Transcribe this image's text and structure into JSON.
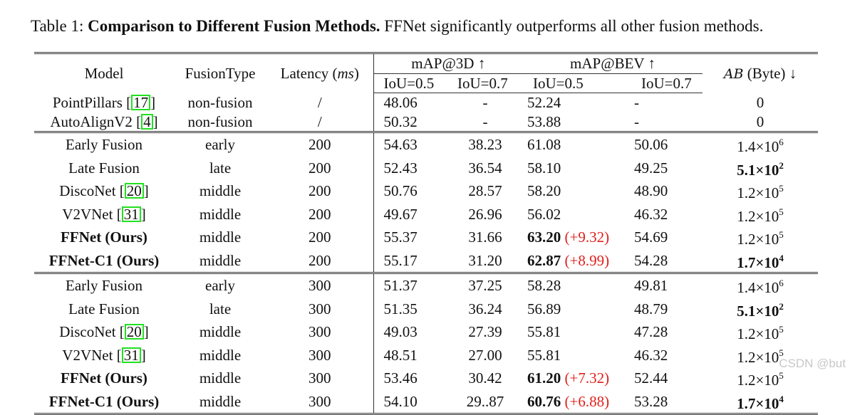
{
  "caption": {
    "label": "Table 1:",
    "title": "Comparison to Different Fusion Methods.",
    "text": "FFNet significantly outperforms all other fusion methods."
  },
  "header": {
    "model": "Model",
    "fusion_type": "FusionType",
    "latency": "Latency (",
    "latency_unit": "ms",
    "latency_close": ")",
    "map3d": "mAP@3D ↑",
    "mapbev": "mAP@BEV ↑",
    "ab": "AB",
    "ab_unit": " (Byte) ↓",
    "iou05": "IoU=0.5",
    "iou07": "IoU=0.7"
  },
  "rows": [
    {
      "model": "PointPillars [",
      "cite": "17",
      "close": "]",
      "bold": false,
      "type": "non-fusion",
      "latency": "/",
      "m3d05": "48.06",
      "m3d07": "-",
      "bev05": "52.24",
      "bev05_delta": "",
      "bev05_bold": false,
      "bev07": "-",
      "ab_base": "0",
      "ab_exp": "",
      "ab_bold": false
    },
    {
      "model": "AutoAlignV2 [",
      "cite": "4",
      "close": "]",
      "bold": false,
      "type": "non-fusion",
      "latency": "/",
      "m3d05": "50.32",
      "m3d07": "-",
      "bev05": "53.88",
      "bev05_delta": "",
      "bev05_bold": false,
      "bev07": "-",
      "ab_base": "0",
      "ab_exp": "",
      "ab_bold": false
    },
    {
      "model": "Early Fusion",
      "cite": "",
      "close": "",
      "bold": false,
      "type": "early",
      "latency": "200",
      "m3d05": "54.63",
      "m3d07": "38.23",
      "bev05": "61.08",
      "bev05_delta": "",
      "bev05_bold": false,
      "bev07": "50.06",
      "ab_base": "1.4×10",
      "ab_exp": "6",
      "ab_bold": false
    },
    {
      "model": "Late Fusion",
      "cite": "",
      "close": "",
      "bold": false,
      "type": "late",
      "latency": "200",
      "m3d05": "52.43",
      "m3d07": "36.54",
      "bev05": "58.10",
      "bev05_delta": "",
      "bev05_bold": false,
      "bev07": "49.25",
      "ab_base": "5.1×10",
      "ab_exp": "2",
      "ab_bold": true
    },
    {
      "model": "DiscoNet [",
      "cite": "20",
      "close": "]",
      "bold": false,
      "type": "middle",
      "latency": "200",
      "m3d05": "50.76",
      "m3d07": "28.57",
      "bev05": "58.20",
      "bev05_delta": "",
      "bev05_bold": false,
      "bev07": "48.90",
      "ab_base": "1.2×10",
      "ab_exp": "5",
      "ab_bold": false
    },
    {
      "model": "V2VNet [",
      "cite": "31",
      "close": "]",
      "bold": false,
      "type": "middle",
      "latency": "200",
      "m3d05": "49.67",
      "m3d07": "26.96",
      "bev05": "56.02",
      "bev05_delta": "",
      "bev05_bold": false,
      "bev07": "46.32",
      "ab_base": "1.2×10",
      "ab_exp": "5",
      "ab_bold": false
    },
    {
      "model": "FFNet (Ours)",
      "cite": "",
      "close": "",
      "bold": true,
      "type": "middle",
      "latency": "200",
      "m3d05": "55.37",
      "m3d07": "31.66",
      "bev05": "63.20",
      "bev05_delta": "(+9.32)",
      "bev05_bold": true,
      "bev07": "54.69",
      "ab_base": "1.2×10",
      "ab_exp": "5",
      "ab_bold": false
    },
    {
      "model": "FFNet-C1 (Ours)",
      "cite": "",
      "close": "",
      "bold": true,
      "type": "middle",
      "latency": "200",
      "m3d05": "55.17",
      "m3d07": "31.20",
      "bev05": "62.87",
      "bev05_delta": "(+8.99)",
      "bev05_bold": true,
      "bev07": "54.28",
      "ab_base": "1.7×10",
      "ab_exp": "4",
      "ab_bold": true
    },
    {
      "model": "Early Fusion",
      "cite": "",
      "close": "",
      "bold": false,
      "type": "early",
      "latency": "300",
      "m3d05": "51.37",
      "m3d07": "37.25",
      "bev05": "58.28",
      "bev05_delta": "",
      "bev05_bold": false,
      "bev07": "49.81",
      "ab_base": "1.4×10",
      "ab_exp": "6",
      "ab_bold": false
    },
    {
      "model": "Late Fusion",
      "cite": "",
      "close": "",
      "bold": false,
      "type": "late",
      "latency": "300",
      "m3d05": "51.35",
      "m3d07": "36.24",
      "bev05": "56.89",
      "bev05_delta": "",
      "bev05_bold": false,
      "bev07": "48.79",
      "ab_base": "5.1×10",
      "ab_exp": "2",
      "ab_bold": true
    },
    {
      "model": "DiscoNet [",
      "cite": "20",
      "close": "]",
      "bold": false,
      "type": "middle",
      "latency": "300",
      "m3d05": "49.03",
      "m3d07": "27.39",
      "bev05": "55.81",
      "bev05_delta": "",
      "bev05_bold": false,
      "bev07": "47.28",
      "ab_base": "1.2×10",
      "ab_exp": "5",
      "ab_bold": false
    },
    {
      "model": "V2VNet [",
      "cite": "31",
      "close": "]",
      "bold": false,
      "type": "middle",
      "latency": "300",
      "m3d05": "48.51",
      "m3d07": "27.00",
      "bev05": "55.81",
      "bev05_delta": "",
      "bev05_bold": false,
      "bev07": "46.32",
      "ab_base": "1.2×10",
      "ab_exp": "5",
      "ab_bold": false
    },
    {
      "model": "FFNet (Ours)",
      "cite": "",
      "close": "",
      "bold": true,
      "type": "middle",
      "latency": "300",
      "m3d05": "53.46",
      "m3d07": "30.42",
      "bev05": "61.20",
      "bev05_delta": "(+7.32)",
      "bev05_bold": true,
      "bev07": "52.44",
      "ab_base": "1.2×10",
      "ab_exp": "5",
      "ab_bold": false
    },
    {
      "model": "FFNet-C1 (Ours)",
      "cite": "",
      "close": "",
      "bold": true,
      "type": "middle",
      "latency": "300",
      "m3d05": "54.10",
      "m3d07": "29..87",
      "bev05": "60.76",
      "bev05_delta": "(+6.88)",
      "bev05_bold": true,
      "bev07": "53.28",
      "ab_base": "1.7×10",
      "ab_exp": "4",
      "ab_bold": true
    }
  ],
  "watermark": "CSDN @but"
}
